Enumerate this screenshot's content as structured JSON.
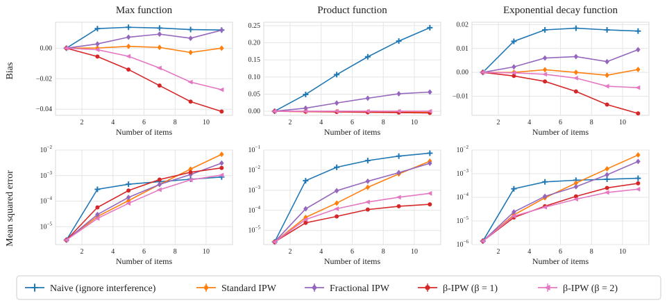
{
  "colors": {
    "naive": "#1f77b4",
    "standard": "#ff7f0e",
    "fractional": "#9467bd",
    "beta1": "#d62728",
    "beta2": "#e377c2"
  },
  "row_labels": [
    "Bias",
    "Mean squared error"
  ],
  "legend": [
    {
      "key": "naive",
      "label": "Naive (ignore interference)",
      "marker": "plus"
    },
    {
      "key": "standard",
      "label": "Standard IPW",
      "marker": "diamond"
    },
    {
      "key": "fractional",
      "label": "Fractional IPW",
      "marker": "diamond"
    },
    {
      "key": "beta1",
      "label": "β-IPW (β = 1)",
      "marker": "circle"
    },
    {
      "key": "beta2",
      "label": "β-IPW (β = 2)",
      "marker": "tri"
    }
  ],
  "chart_data": [
    {
      "type": "line",
      "title": "Max function",
      "xlabel": "Number of items",
      "ylabel": "Bias",
      "x": [
        1,
        3,
        5,
        7,
        9,
        11
      ],
      "xlim": [
        0.3,
        11.7
      ],
      "xticks": [
        2,
        4,
        6,
        8,
        10
      ],
      "yscale": "linear",
      "ylim": [
        -0.044,
        0.017
      ],
      "yticks": [
        0.0,
        -0.02,
        -0.04
      ],
      "yticklabels": [
        "0.00",
        "−0.02",
        "−0.04"
      ],
      "series": [
        {
          "key": "naive",
          "name": "Naive (ignore interference)",
          "values": [
            0.0,
            0.0128,
            0.0137,
            0.0132,
            0.0122,
            0.0119
          ]
        },
        {
          "key": "standard",
          "name": "Standard IPW",
          "values": [
            0.0,
            0.0001,
            0.0012,
            0.0005,
            -0.0028,
            0.0
          ]
        },
        {
          "key": "fractional",
          "name": "Fractional IPW",
          "values": [
            0.0,
            0.0028,
            0.0072,
            0.0092,
            0.0065,
            0.0118
          ]
        },
        {
          "key": "beta1",
          "name": "β-IPW (β = 1)",
          "values": [
            0.0,
            -0.0055,
            -0.014,
            -0.0245,
            -0.035,
            -0.0415
          ]
        },
        {
          "key": "beta2",
          "name": "β-IPW (β = 2)",
          "values": [
            0.0,
            -0.001,
            -0.0053,
            -0.013,
            -0.0222,
            -0.0272
          ]
        }
      ]
    },
    {
      "type": "line",
      "title": "Product function",
      "xlabel": "Number of items",
      "ylabel": "",
      "x": [
        1,
        3,
        5,
        7,
        9,
        11
      ],
      "xlim": [
        0.3,
        11.7
      ],
      "xticks": [
        2,
        4,
        6,
        8,
        10
      ],
      "yscale": "linear",
      "ylim": [
        -0.012,
        0.26
      ],
      "yticks": [
        0.0,
        0.05,
        0.1,
        0.15,
        0.2,
        0.25
      ],
      "yticklabels": [
        "0.00",
        "0.05",
        "0.10",
        "0.15",
        "0.20",
        "0.25"
      ],
      "series": [
        {
          "key": "naive",
          "name": "Naive (ignore interference)",
          "values": [
            0.0,
            0.049,
            0.107,
            0.159,
            0.205,
            0.244
          ]
        },
        {
          "key": "standard",
          "name": "Standard IPW",
          "values": [
            0.0,
            -0.001,
            -0.001,
            -0.002,
            -0.002,
            -0.003
          ]
        },
        {
          "key": "fractional",
          "name": "Fractional IPW",
          "values": [
            0.0,
            0.009,
            0.024,
            0.038,
            0.051,
            0.056
          ]
        },
        {
          "key": "beta1",
          "name": "β-IPW (β = 1)",
          "values": [
            0.0,
            -0.001,
            -0.002,
            -0.003,
            -0.004,
            -0.005
          ]
        },
        {
          "key": "beta2",
          "name": "β-IPW (β = 2)",
          "values": [
            0.0,
            0.0,
            0.0,
            0.0,
            0.0,
            0.0
          ]
        }
      ]
    },
    {
      "type": "line",
      "title": "Exponential decay function",
      "xlabel": "Number of items",
      "ylabel": "",
      "x": [
        1,
        3,
        5,
        7,
        9,
        11
      ],
      "xlim": [
        0.3,
        11.7
      ],
      "xticks": [
        2,
        4,
        6,
        8,
        10
      ],
      "yscale": "linear",
      "ylim": [
        -0.018,
        0.021
      ],
      "yticks": [
        0.02,
        0.01,
        0.0,
        -0.01
      ],
      "yticklabels": [
        "0.02",
        "0.01",
        "0.00",
        "−0.01"
      ],
      "series": [
        {
          "key": "naive",
          "name": "Naive (ignore interference)",
          "values": [
            0.0,
            0.013,
            0.0178,
            0.0185,
            0.0178,
            0.0173
          ]
        },
        {
          "key": "standard",
          "name": "Standard IPW",
          "values": [
            0.0,
            0.0,
            0.0011,
            0.0,
            -0.0012,
            0.0012
          ]
        },
        {
          "key": "fractional",
          "name": "Fractional IPW",
          "values": [
            0.0,
            0.0023,
            0.006,
            0.0066,
            0.0045,
            0.0095
          ]
        },
        {
          "key": "beta1",
          "name": "β-IPW (β = 1)",
          "values": [
            0.0,
            -0.0015,
            -0.0038,
            -0.008,
            -0.0135,
            -0.0172
          ]
        },
        {
          "key": "beta2",
          "name": "β-IPW (β = 2)",
          "values": [
            0.0,
            -0.0002,
            -0.0008,
            -0.0024,
            -0.0058,
            -0.0064
          ]
        }
      ]
    },
    {
      "type": "line",
      "title": "",
      "xlabel": "Number of items",
      "ylabel": "Mean squared error",
      "x": [
        1,
        3,
        5,
        7,
        9,
        11
      ],
      "xlim": [
        0.3,
        11.7
      ],
      "xticks": [
        2,
        4,
        6,
        8,
        10
      ],
      "yscale": "log",
      "ylim_exp": [
        -5.7,
        -2.0
      ],
      "yticks_exp": [
        -5,
        -4,
        -3,
        -2
      ],
      "series": [
        {
          "key": "naive",
          "name": "Naive (ignore interference)",
          "values": [
            3e-06,
            0.00029,
            0.00046,
            0.00058,
            0.00072,
            0.00088
          ]
        },
        {
          "key": "standard",
          "name": "Standard IPW",
          "values": [
            3e-06,
            2.5e-05,
            0.000105,
            0.00045,
            0.0018,
            0.0068
          ]
        },
        {
          "key": "fractional",
          "name": "Fractional IPW",
          "values": [
            3e-06,
            3e-05,
            0.00014,
            0.00045,
            0.0011,
            0.0031
          ]
        },
        {
          "key": "beta1",
          "name": "β-IPW (β = 1)",
          "values": [
            3e-06,
            5.7e-05,
            0.00026,
            0.0007,
            0.00135,
            0.002
          ]
        },
        {
          "key": "beta2",
          "name": "β-IPW (β = 2)",
          "values": [
            3e-06,
            2.1e-05,
            8.2e-05,
            0.00028,
            0.00068,
            0.00105
          ]
        }
      ]
    },
    {
      "type": "line",
      "title": "",
      "xlabel": "Number of items",
      "ylabel": "",
      "x": [
        1,
        3,
        5,
        7,
        9,
        11
      ],
      "xlim": [
        0.3,
        11.7
      ],
      "xticks": [
        2,
        4,
        6,
        8,
        10
      ],
      "yscale": "log",
      "ylim_exp": [
        -5.7,
        -1.0
      ],
      "yticks_exp": [
        -5,
        -4,
        -3,
        -2,
        -1
      ],
      "series": [
        {
          "key": "naive",
          "name": "Naive (ignore interference)",
          "values": [
            2.7e-06,
            0.003,
            0.014,
            0.03,
            0.05,
            0.07
          ]
        },
        {
          "key": "standard",
          "name": "Standard IPW",
          "values": [
            2.7e-06,
            4.5e-05,
            0.00023,
            0.0014,
            0.0065,
            0.028
          ]
        },
        {
          "key": "fractional",
          "name": "Fractional IPW",
          "values": [
            2.7e-06,
            0.00012,
            0.00095,
            0.0028,
            0.0075,
            0.022
          ]
        },
        {
          "key": "beta1",
          "name": "β-IPW (β = 1)",
          "values": [
            2.7e-06,
            2.4e-05,
            5e-05,
            0.00011,
            0.00016,
            0.0002
          ]
        },
        {
          "key": "beta2",
          "name": "β-IPW (β = 2)",
          "values": [
            2.7e-06,
            3.5e-05,
            0.00012,
            0.00026,
            0.00045,
            0.0007
          ]
        }
      ]
    },
    {
      "type": "line",
      "title": "",
      "xlabel": "Number of items",
      "ylabel": "",
      "x": [
        1,
        3,
        5,
        7,
        9,
        11
      ],
      "xlim": [
        0.3,
        11.7
      ],
      "xticks": [
        2,
        4,
        6,
        8,
        10
      ],
      "yscale": "log",
      "ylim_exp": [
        -6.0,
        -2.0
      ],
      "yticks_exp": [
        -6,
        -5,
        -4,
        -3,
        -2
      ],
      "series": [
        {
          "key": "naive",
          "name": "Naive (ignore interference)",
          "values": [
            1.4e-06,
            0.00023,
            0.00045,
            0.00053,
            0.00058,
            0.00064
          ]
        },
        {
          "key": "standard",
          "name": "Standard IPW",
          "values": [
            1.4e-06,
            1.8e-05,
            9.5e-05,
            0.0004,
            0.0016,
            0.0062
          ]
        },
        {
          "key": "fractional",
          "name": "Fractional IPW",
          "values": [
            1.4e-06,
            2.4e-05,
            0.00011,
            0.00028,
            0.0009,
            0.0033
          ]
        },
        {
          "key": "beta1",
          "name": "β-IPW (β = 1)",
          "values": [
            1.4e-06,
            1.4e-05,
            4.2e-05,
            0.00011,
            0.00025,
            0.00039
          ]
        },
        {
          "key": "beta2",
          "name": "β-IPW (β = 2)",
          "values": [
            1.4e-06,
            1.6e-05,
            3.8e-05,
            8.3e-05,
            0.00016,
            0.00022
          ]
        }
      ]
    }
  ]
}
